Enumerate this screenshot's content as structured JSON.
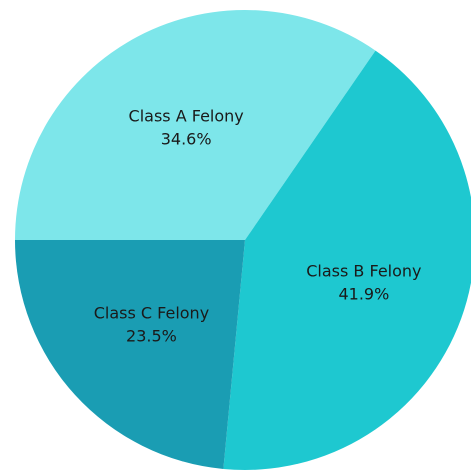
{
  "chart_data": {
    "type": "pie",
    "categories": [
      "Class A Felony",
      "Class B Felony",
      "Class C Felony"
    ],
    "values": [
      34.6,
      41.9,
      23.5
    ],
    "value_labels": [
      "34.6%",
      "41.9%",
      "23.5%"
    ],
    "colors": [
      "#7de6ea",
      "#1ec8d0",
      "#1a9db3"
    ]
  }
}
